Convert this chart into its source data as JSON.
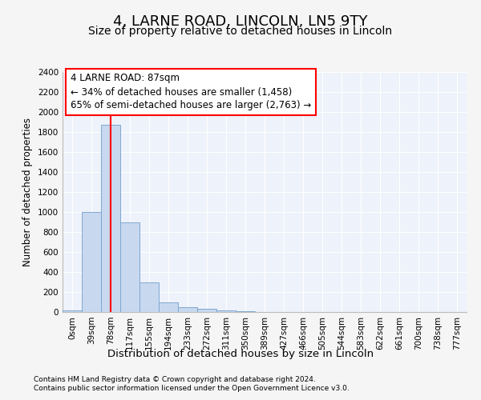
{
  "title1": "4, LARNE ROAD, LINCOLN, LN5 9TY",
  "title2": "Size of property relative to detached houses in Lincoln",
  "xlabel": "Distribution of detached houses by size in Lincoln",
  "ylabel": "Number of detached properties",
  "bar_labels": [
    "0sqm",
    "39sqm",
    "78sqm",
    "117sqm",
    "155sqm",
    "194sqm",
    "233sqm",
    "272sqm",
    "311sqm",
    "350sqm",
    "389sqm",
    "427sqm",
    "466sqm",
    "505sqm",
    "544sqm",
    "583sqm",
    "622sqm",
    "661sqm",
    "700sqm",
    "738sqm",
    "777sqm"
  ],
  "bar_values": [
    20,
    1000,
    1870,
    900,
    300,
    100,
    50,
    30,
    20,
    5,
    0,
    0,
    0,
    0,
    0,
    0,
    0,
    0,
    0,
    0,
    0
  ],
  "bar_color": "#c8d8ef",
  "bar_edge_color": "#7fa8d0",
  "ylim": [
    0,
    2400
  ],
  "yticks": [
    0,
    200,
    400,
    600,
    800,
    1000,
    1200,
    1400,
    1600,
    1800,
    2000,
    2200,
    2400
  ],
  "red_line_x": 2.0,
  "annotation_line1": "4 LARNE ROAD: 87sqm",
  "annotation_line2": "← 34% of detached houses are smaller (1,458)",
  "annotation_line3": "65% of semi-detached houses are larger (2,763) →",
  "footer1": "Contains HM Land Registry data © Crown copyright and database right 2024.",
  "footer2": "Contains public sector information licensed under the Open Government Licence v3.0.",
  "bg_color": "#f5f5f5",
  "plot_bg_color": "#eef2fa",
  "grid_color": "white",
  "title1_fontsize": 13,
  "title2_fontsize": 10,
  "ylabel_fontsize": 8.5,
  "xlabel_fontsize": 9.5,
  "tick_fontsize": 7.5,
  "footer_fontsize": 6.5,
  "ann_fontsize": 8.5
}
